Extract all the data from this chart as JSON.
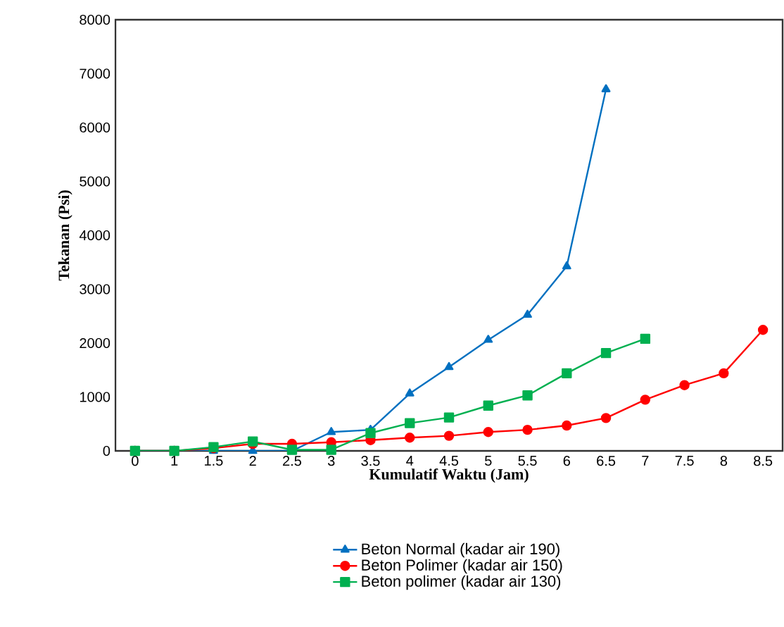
{
  "chart_data": {
    "type": "line",
    "xlabel": "Kumulatif Waktu (Jam)",
    "ylabel": "Tekanan (Psi)",
    "categories": [
      "0",
      "1",
      "1.5",
      "2",
      "2.5",
      "3",
      "3.5",
      "4",
      "4.5",
      "5",
      "5.5",
      "6",
      "6.5",
      "7",
      "7.5",
      "8",
      "8.5"
    ],
    "series": [
      {
        "name": "Beton Normal (kadar air 190)",
        "color": "#0070c0",
        "marker": "triangle",
        "values": [
          0,
          0,
          0,
          0,
          0,
          350,
          390,
          1065,
          1555,
          2060,
          2525,
          3425,
          6710,
          null,
          null,
          null,
          null
        ]
      },
      {
        "name": "Beton Polimer (kadar air 150)",
        "color": "#ff0000",
        "marker": "circle",
        "values": [
          0,
          0,
          50,
          130,
          130,
          160,
          200,
          245,
          280,
          350,
          390,
          470,
          610,
          950,
          1220,
          1440,
          2245
        ]
      },
      {
        "name": "Beton polimer (kadar air 130)",
        "color": "#00b050",
        "marker": "square",
        "values": [
          0,
          0,
          70,
          175,
          20,
          20,
          330,
          515,
          620,
          840,
          1030,
          1440,
          1815,
          2080,
          null,
          null,
          null
        ]
      }
    ],
    "ylim": [
      0,
      8000
    ],
    "yticks": [
      0,
      1000,
      2000,
      3000,
      4000,
      5000,
      6000,
      7000,
      8000
    ],
    "grid": false,
    "legend": "bottom"
  }
}
